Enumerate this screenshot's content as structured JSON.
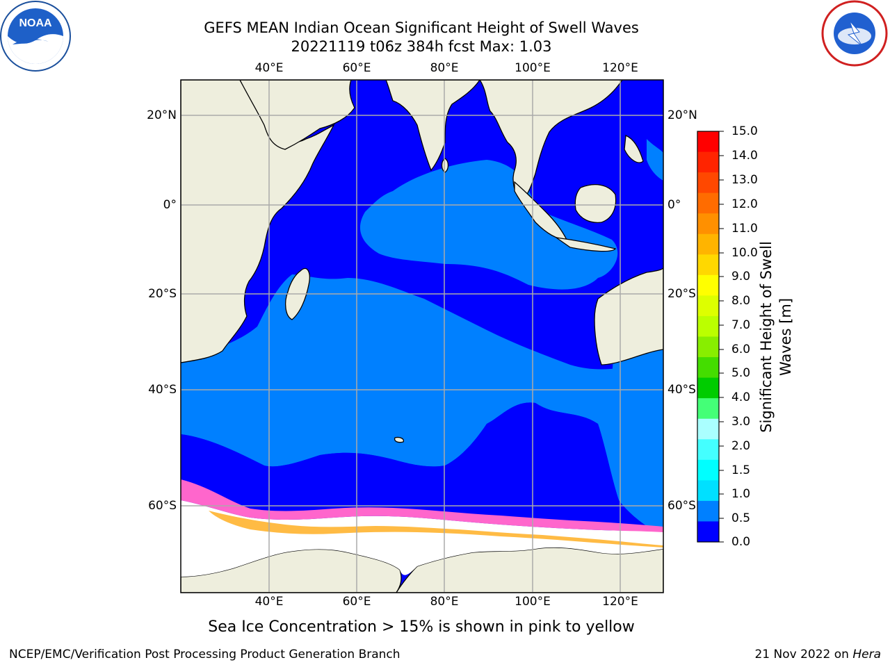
{
  "title": {
    "line1": "GEFS MEAN Indian Ocean Significant Height of Swell Waves",
    "line2": "20221119 t06z 384h fcst   Max: 1.03"
  },
  "logos": {
    "left": {
      "name": "noaa-logo",
      "text": "NOAA"
    },
    "right": {
      "name": "nws-logo",
      "text": "NATIONAL WEATHER SERVICE"
    }
  },
  "map": {
    "lon_ticks": [
      "40°E",
      "60°E",
      "80°E",
      "100°E",
      "120°E"
    ],
    "lat_ticks_left": [
      "20°N",
      "0°",
      "20°S",
      "40°S",
      "60°S"
    ],
    "lat_ticks_right": [
      "20°N",
      "0°",
      "20°S",
      "40°S",
      "60°S"
    ],
    "colors": {
      "land": "#eeeedd",
      "ocean_low": "#0000ff",
      "ocean_mid": "#0080ff",
      "sea_ice": "#ffffff",
      "ice_pink": "#ff66cc",
      "ice_orange": "#ffbb44",
      "grid": "#aaaaaa"
    }
  },
  "colorbar": {
    "title_line1": "Significant Height of Swell",
    "title_line2": "Waves [m]",
    "labels": [
      "15.0",
      "14.0",
      "13.0",
      "12.0",
      "11.0",
      "10.0",
      "9.0",
      "8.0",
      "7.0",
      "6.0",
      "5.0",
      "4.0",
      "3.0",
      "2.0",
      "1.5",
      "1.0",
      "0.5",
      "0.0"
    ],
    "colors_top_to_bottom": [
      "#ff0000",
      "#ff2400",
      "#ff4800",
      "#ff6c00",
      "#ff9000",
      "#ffb400",
      "#ffd800",
      "#ffff00",
      "#ddff00",
      "#bbff00",
      "#88ee00",
      "#44dd00",
      "#00cc00",
      "#44ff77",
      "#aaffff",
      "#44ffff",
      "#00ffff",
      "#00e0ff",
      "#0080ff",
      "#0000ff"
    ]
  },
  "footnote": "Sea Ice Concentration > 15% is shown in pink to yellow",
  "footer": {
    "left": "NCEP/EMC/Verification Post Processing Product Generation Branch",
    "right_prefix": "21 Nov 2022 on ",
    "right_host": "Hera"
  }
}
